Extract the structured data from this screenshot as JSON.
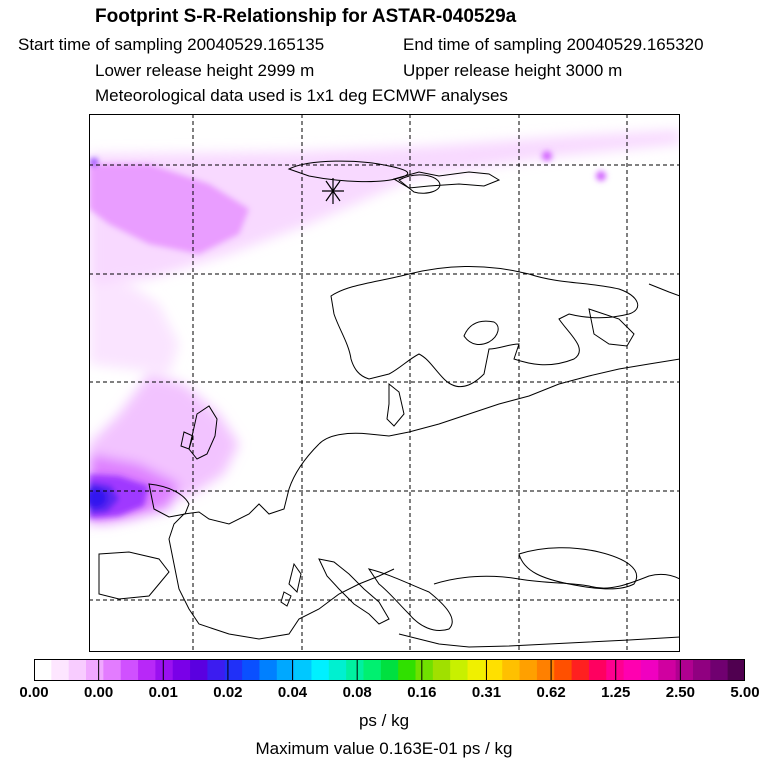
{
  "header": {
    "title": "Footprint S-R-Relationship for ASTAR-040529a",
    "start_time": "Start time of sampling 20040529.165135",
    "end_time": "End time of sampling 20040529.165320",
    "lower_height": "Lower release height 2999 m",
    "upper_height": "Upper release height 3000 m",
    "met_data": "Meteorological data used is 1x1 deg ECMWF analyses"
  },
  "colorbar": {
    "tick_labels": [
      "0.00",
      "0.00",
      "0.01",
      "0.02",
      "0.04",
      "0.08",
      "0.16",
      "0.31",
      "0.62",
      "1.25",
      "2.50",
      "5.00"
    ],
    "colors": [
      "#ffffff",
      "#fde6ff",
      "#f8ccff",
      "#f0a8ff",
      "#e37cff",
      "#d050ff",
      "#b828f8",
      "#9a10f0",
      "#7a00e8",
      "#5a00e0",
      "#3c1cf0",
      "#2030f8",
      "#0a50ff",
      "#0080ff",
      "#00a8ff",
      "#00c8ff",
      "#00f0ff",
      "#00f0d0",
      "#00f0a0",
      "#00f070",
      "#00e040",
      "#30e000",
      "#70e000",
      "#a0e000",
      "#c8f000",
      "#f0f000",
      "#ffe000",
      "#ffc000",
      "#ffa000",
      "#ff8000",
      "#ff5000",
      "#ff2020",
      "#ff0060",
      "#ff0090",
      "#ff00b0",
      "#f000c0",
      "#d000a0",
      "#b00090",
      "#900080",
      "#700070",
      "#500050"
    ],
    "units": "ps / kg",
    "max_value": "Maximum value  0.163E-01 ps / kg"
  },
  "map": {
    "station_marker": "asterisk-icon"
  }
}
